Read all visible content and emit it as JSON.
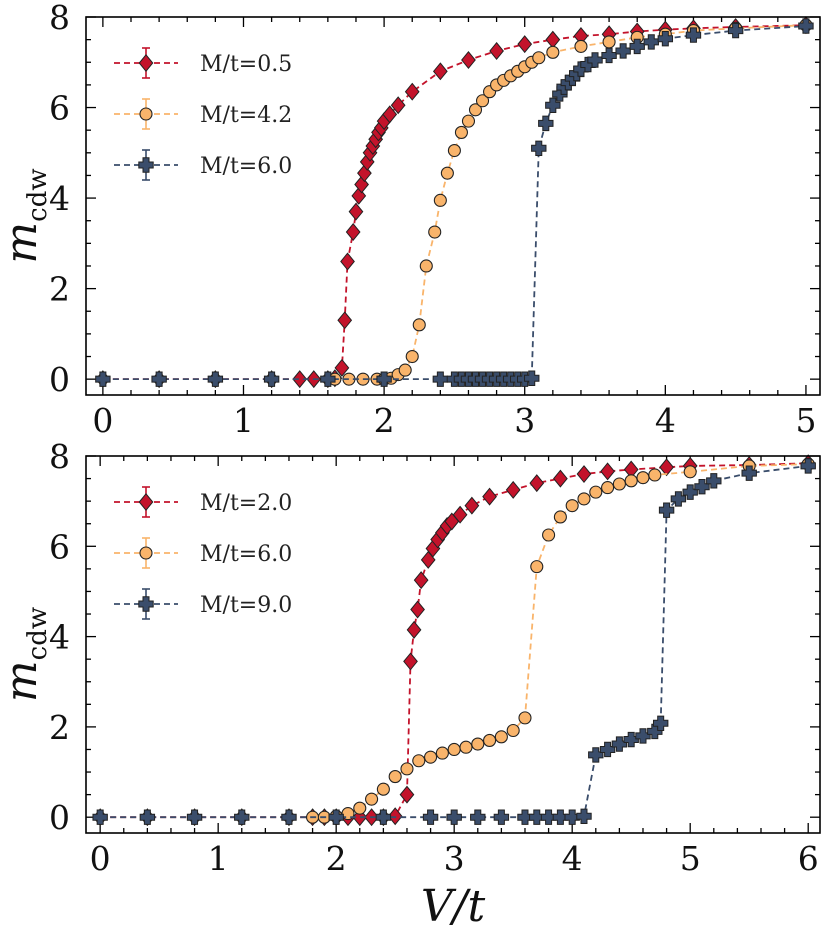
{
  "colors": {
    "red": "#c3132b",
    "orange": "#f9b46b",
    "navy": "#3a4d6b",
    "marker_edge": "#222222"
  },
  "chart_data": [
    {
      "type": "line",
      "id": "top",
      "xlabel_main": "V/t",
      "xlabel_show": false,
      "ylabel_main": "m",
      "ylabel_sub": "cdw",
      "xlim": [
        -0.12,
        5.1
      ],
      "ylim": [
        -0.35,
        8.0
      ],
      "xticks": [
        0,
        1,
        2,
        3,
        4,
        5
      ],
      "yticks": [
        0,
        2,
        4,
        6,
        8
      ],
      "legend_position": "top-left",
      "series": [
        {
          "name": "M/t=0.5",
          "color_key": "red",
          "marker": "diamond",
          "x": [
            0,
            0.4,
            0.8,
            1.2,
            1.4,
            1.5,
            1.6,
            1.65,
            1.7,
            1.72,
            1.74,
            1.78,
            1.8,
            1.82,
            1.84,
            1.86,
            1.88,
            1.9,
            1.92,
            1.94,
            1.96,
            1.98,
            2.0,
            2.04,
            2.1,
            2.2,
            2.4,
            2.6,
            2.8,
            3.0,
            3.2,
            3.4,
            3.6,
            3.8,
            4.0,
            4.2,
            4.5,
            5.0
          ],
          "y": [
            0,
            0,
            0,
            0,
            0,
            0,
            0,
            0.02,
            0.25,
            1.3,
            2.6,
            3.25,
            3.7,
            4.05,
            4.3,
            4.55,
            4.8,
            5.0,
            5.15,
            5.3,
            5.45,
            5.55,
            5.7,
            5.85,
            6.05,
            6.35,
            6.8,
            7.05,
            7.25,
            7.4,
            7.5,
            7.58,
            7.62,
            7.68,
            7.72,
            7.75,
            7.78,
            7.82
          ]
        },
        {
          "name": "M/t=4.2",
          "color_key": "orange",
          "marker": "circle",
          "x": [
            1.65,
            1.75,
            1.85,
            1.95,
            2.0,
            2.05,
            2.1,
            2.15,
            2.2,
            2.25,
            2.3,
            2.36,
            2.4,
            2.45,
            2.5,
            2.55,
            2.6,
            2.65,
            2.7,
            2.75,
            2.8,
            2.85,
            2.9,
            2.95,
            3.0,
            3.05,
            3.1,
            3.2,
            3.4,
            3.6,
            3.8,
            4.0,
            4.2,
            4.5,
            5.0
          ],
          "y": [
            0,
            0,
            0,
            0,
            0,
            0.02,
            0.1,
            0.2,
            0.5,
            1.2,
            2.5,
            3.25,
            3.95,
            4.55,
            5.05,
            5.45,
            5.7,
            5.95,
            6.15,
            6.35,
            6.5,
            6.6,
            6.7,
            6.8,
            6.9,
            7.0,
            7.1,
            7.22,
            7.35,
            7.45,
            7.55,
            7.62,
            7.7,
            7.75,
            7.82
          ]
        },
        {
          "name": "M/t=6.0",
          "color_key": "navy",
          "marker": "plus",
          "x": [
            0,
            0.4,
            0.8,
            1.2,
            1.6,
            2.0,
            2.4,
            2.5,
            2.55,
            2.6,
            2.65,
            2.7,
            2.75,
            2.8,
            2.85,
            2.9,
            2.95,
            3.0,
            3.05,
            3.1,
            3.15,
            3.2,
            3.25,
            3.28,
            3.31,
            3.34,
            3.37,
            3.4,
            3.45,
            3.5,
            3.6,
            3.7,
            3.8,
            3.9,
            4.0,
            4.2,
            4.5,
            5.0
          ],
          "y": [
            0,
            0,
            0,
            0,
            0,
            0,
            0,
            0,
            0,
            0,
            0,
            0,
            0,
            0,
            0,
            0,
            0,
            0,
            0.02,
            5.1,
            5.65,
            6.05,
            6.3,
            6.45,
            6.55,
            6.65,
            6.75,
            6.85,
            6.95,
            7.05,
            7.15,
            7.25,
            7.35,
            7.45,
            7.52,
            7.6,
            7.7,
            7.8
          ]
        }
      ]
    },
    {
      "type": "line",
      "id": "bottom",
      "xlabel_main": "V/t",
      "xlabel_show": true,
      "ylabel_main": "m",
      "ylabel_sub": "cdw",
      "xlim": [
        -0.12,
        6.1
      ],
      "ylim": [
        -0.35,
        8.0
      ],
      "xticks": [
        0,
        1,
        2,
        3,
        4,
        5,
        6
      ],
      "yticks": [
        0,
        2,
        4,
        6,
        8
      ],
      "legend_position": "top-left",
      "series": [
        {
          "name": "M/t=2.0",
          "color_key": "red",
          "marker": "diamond",
          "x": [
            0,
            0.4,
            0.8,
            1.2,
            1.6,
            1.8,
            1.9,
            2.0,
            2.1,
            2.2,
            2.3,
            2.4,
            2.5,
            2.6,
            2.63,
            2.66,
            2.69,
            2.72,
            2.78,
            2.82,
            2.86,
            2.9,
            2.94,
            2.98,
            3.05,
            3.15,
            3.3,
            3.5,
            3.7,
            3.9,
            4.1,
            4.3,
            4.5,
            4.8,
            5.0,
            5.5,
            6.0
          ],
          "y": [
            0,
            0,
            0,
            0,
            0,
            0,
            0,
            0,
            0,
            0,
            0,
            0,
            0.02,
            0.5,
            3.45,
            4.15,
            4.6,
            5.25,
            5.7,
            5.95,
            6.15,
            6.3,
            6.45,
            6.55,
            6.7,
            6.9,
            7.1,
            7.25,
            7.4,
            7.5,
            7.6,
            7.66,
            7.7,
            7.75,
            7.78,
            7.8,
            7.84
          ]
        },
        {
          "name": "M/t=6.0",
          "color_key": "orange",
          "marker": "circle",
          "x": [
            1.8,
            1.9,
            2.0,
            2.1,
            2.2,
            2.3,
            2.4,
            2.5,
            2.6,
            2.7,
            2.8,
            2.9,
            3.0,
            3.1,
            3.2,
            3.3,
            3.4,
            3.5,
            3.6,
            3.7,
            3.8,
            3.9,
            4.0,
            4.1,
            4.2,
            4.3,
            4.4,
            4.5,
            4.6,
            4.7,
            5.0,
            5.5,
            6.0
          ],
          "y": [
            0,
            0,
            0.02,
            0.08,
            0.2,
            0.4,
            0.62,
            0.9,
            1.07,
            1.25,
            1.33,
            1.42,
            1.5,
            1.55,
            1.62,
            1.7,
            1.78,
            1.92,
            2.2,
            5.55,
            6.25,
            6.65,
            6.9,
            7.05,
            7.2,
            7.3,
            7.38,
            7.45,
            7.52,
            7.58,
            7.65,
            7.78,
            7.82
          ]
        },
        {
          "name": "M/t=9.0",
          "color_key": "navy",
          "marker": "plus",
          "x": [
            0,
            0.4,
            0.8,
            1.2,
            1.6,
            2.0,
            2.4,
            2.8,
            3.0,
            3.2,
            3.4,
            3.6,
            3.7,
            3.8,
            3.9,
            4.0,
            4.1,
            4.2,
            4.3,
            4.4,
            4.5,
            4.6,
            4.7,
            4.75,
            4.8,
            4.9,
            5.0,
            5.1,
            5.2,
            5.5,
            6.0
          ],
          "y": [
            0,
            0,
            0,
            0,
            0,
            0,
            0,
            0,
            0,
            0,
            0,
            0,
            0,
            0,
            0,
            0,
            0.02,
            1.38,
            1.5,
            1.62,
            1.72,
            1.8,
            1.9,
            2.08,
            6.8,
            7.05,
            7.2,
            7.32,
            7.45,
            7.62,
            7.78
          ]
        }
      ]
    }
  ]
}
